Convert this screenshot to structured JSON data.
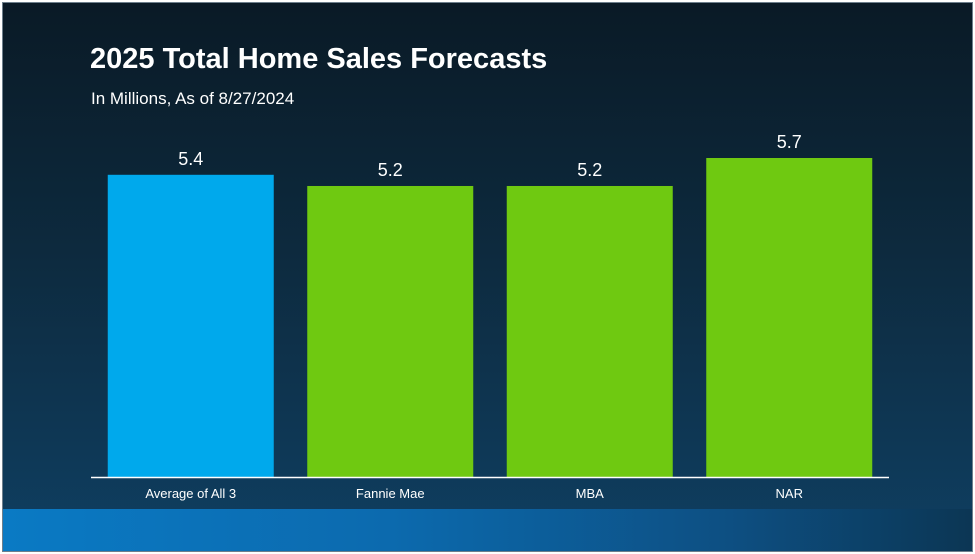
{
  "title": "2025 Total Home Sales Forecasts",
  "subtitle": "In Millions, As of 8/27/2024",
  "colors": {
    "highlight_bar": "#00a9ec",
    "bar": "#6fc911",
    "axis": "#ffffff",
    "label": "#ffffff"
  },
  "chart_data": {
    "type": "bar",
    "title": "2025 Total Home Sales Forecasts",
    "subtitle": "In Millions, As of 8/27/2024",
    "categories": [
      "Average of All 3",
      "Fannie Mae",
      "MBA",
      "NAR"
    ],
    "values": [
      5.4,
      5.2,
      5.2,
      5.7
    ],
    "data_labels": [
      "5.4",
      "5.2",
      "5.2",
      "5.7"
    ],
    "ylim": [
      0,
      5.7
    ],
    "grid": false,
    "legend": "none",
    "xlabel": "",
    "ylabel": ""
  }
}
